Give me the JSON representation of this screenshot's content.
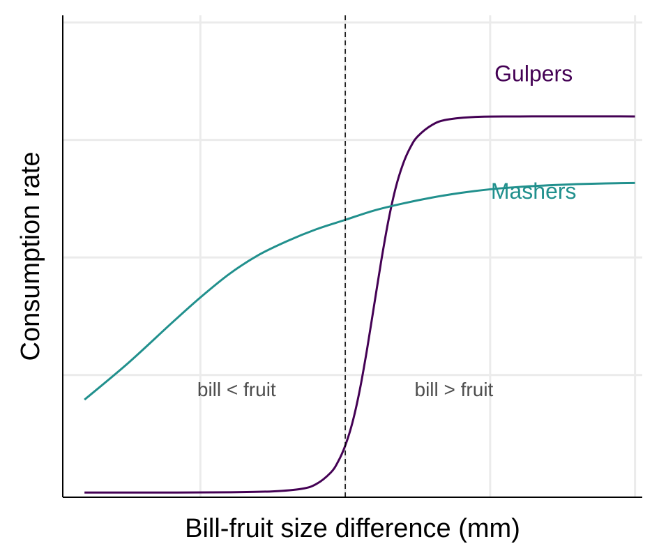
{
  "chart_data": {
    "type": "line",
    "xlabel": "Bill-fruit size difference (mm)",
    "ylabel": "Consumption rate",
    "x_tick_labels_shown": false,
    "y_tick_labels_shown": false,
    "xlim": [
      -3.9,
      4.1
    ],
    "ylim": [
      -0.02,
      2.03
    ],
    "x_gridlines": [
      -2,
      0,
      2,
      4
    ],
    "y_gridlines": [
      0.5,
      1.0,
      1.5,
      2.0
    ],
    "grid": true,
    "reference_line": {
      "x": 0,
      "style": "dashed"
    },
    "series": [
      {
        "name": "Gulpers",
        "color": "#440154",
        "x": [
          -3.6,
          -2.4,
          -1.6,
          -1.0,
          -0.6,
          -0.4,
          -0.2,
          -0.1,
          0.0,
          0.1,
          0.2,
          0.3,
          0.4,
          0.5,
          0.6,
          0.7,
          0.8,
          0.9,
          1.0,
          1.2,
          1.4,
          1.8,
          2.4,
          4.0
        ],
        "y": [
          0.0,
          0.0,
          0.001,
          0.005,
          0.016,
          0.036,
          0.085,
          0.131,
          0.2,
          0.299,
          0.436,
          0.608,
          0.8,
          0.992,
          1.164,
          1.301,
          1.4,
          1.469,
          1.515,
          1.564,
          1.586,
          1.598,
          1.6,
          1.6
        ]
      },
      {
        "name": "Mashers",
        "color": "#21908d",
        "x": [
          -3.6,
          -3.0,
          -2.4,
          -2.0,
          -1.6,
          -1.2,
          -0.8,
          -0.4,
          0.0,
          0.4,
          0.8,
          1.2,
          1.6,
          2.0,
          2.4,
          2.8,
          3.2,
          3.6,
          4.0
        ],
        "y": [
          0.395,
          0.55,
          0.72,
          0.83,
          0.93,
          1.01,
          1.07,
          1.12,
          1.16,
          1.2,
          1.23,
          1.255,
          1.275,
          1.29,
          1.3,
          1.307,
          1.312,
          1.315,
          1.317
        ]
      }
    ],
    "annotations": [
      {
        "text": "Gulpers",
        "x": 2.6,
        "y": 1.75,
        "color": "#440154"
      },
      {
        "text": "Mashers",
        "x": 2.6,
        "y": 1.25,
        "color": "#21908d"
      },
      {
        "text": "bill < fruit",
        "x": -1.5,
        "y": 0.41
      },
      {
        "text": "bill > fruit",
        "x": 1.5,
        "y": 0.41
      }
    ]
  }
}
